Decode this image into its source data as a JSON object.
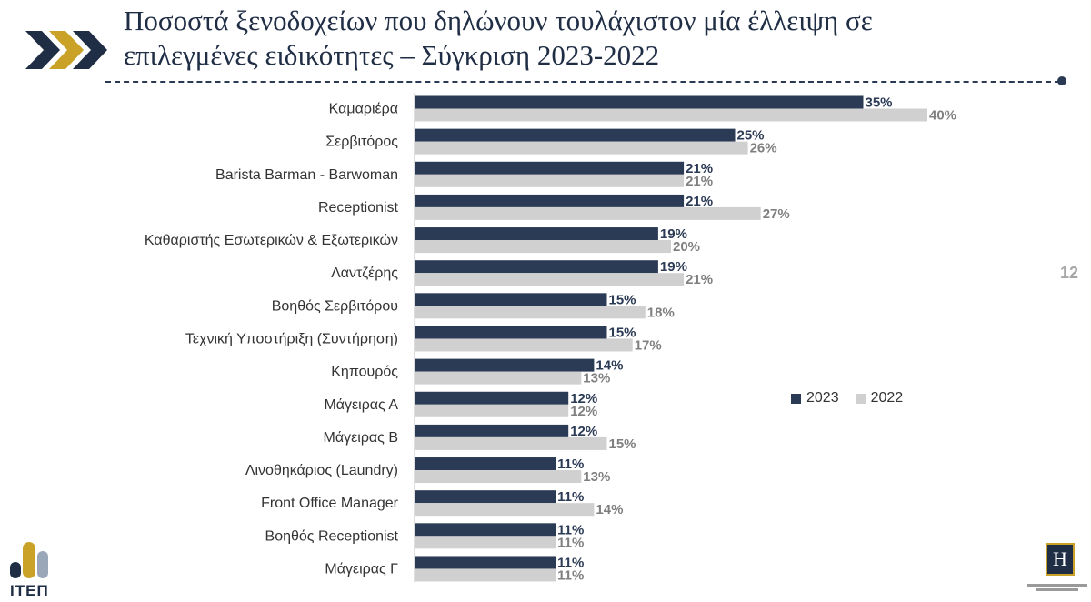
{
  "title": {
    "line1": "Ποσοστά ξενοδοχείων που δηλώνουν τουλάχιστον μία έλλειψη σε",
    "line2": "επιλεγμένες ειδικότητες – Σύγκριση 2023-2022"
  },
  "page_number": "12",
  "logo": {
    "text": "ΙΤΕΠ",
    "h_mark": "H"
  },
  "colors": {
    "series_2023": "#2b3a55",
    "series_2022": "#d0d0d0",
    "label_2023": "#2b3a55",
    "label_2022": "#7f7f7f"
  },
  "chart_data": {
    "type": "bar",
    "orientation": "horizontal",
    "title": "Ποσοστά ξενοδοχείων που δηλώνουν τουλάχιστον μία έλλειψη σε επιλεγμένες ειδικότητες – Σύγκριση 2023-2022",
    "categories": [
      "Καμαριέρα",
      "Σερβιτόρος",
      "Barista  Barman - Barwoman",
      "Receptionist",
      "Καθαριστής Εσωτερικών & Εξωτερικών",
      "Λαντζέρης",
      "Βοηθός Σερβιτόρου",
      "Τεχνική Υποστήριξη (Συντήρηση)",
      "Κηπουρός",
      "Μάγειρας Α",
      "Μάγειρας Β",
      "Λινοθηκάριος (Laundry)",
      "Front Office Manager",
      "Βοηθός Receptionist",
      "Μάγειρας Γ"
    ],
    "series": [
      {
        "name": "2023",
        "values": [
          35,
          25,
          21,
          21,
          19,
          19,
          15,
          15,
          14,
          12,
          12,
          11,
          11,
          11,
          11
        ]
      },
      {
        "name": "2022",
        "values": [
          40,
          26,
          21,
          27,
          20,
          21,
          18,
          17,
          13,
          12,
          15,
          13,
          14,
          11,
          11
        ]
      }
    ],
    "value_suffix": "%",
    "xlim": [
      0,
      48
    ],
    "grid": false,
    "legend_position": "right"
  }
}
